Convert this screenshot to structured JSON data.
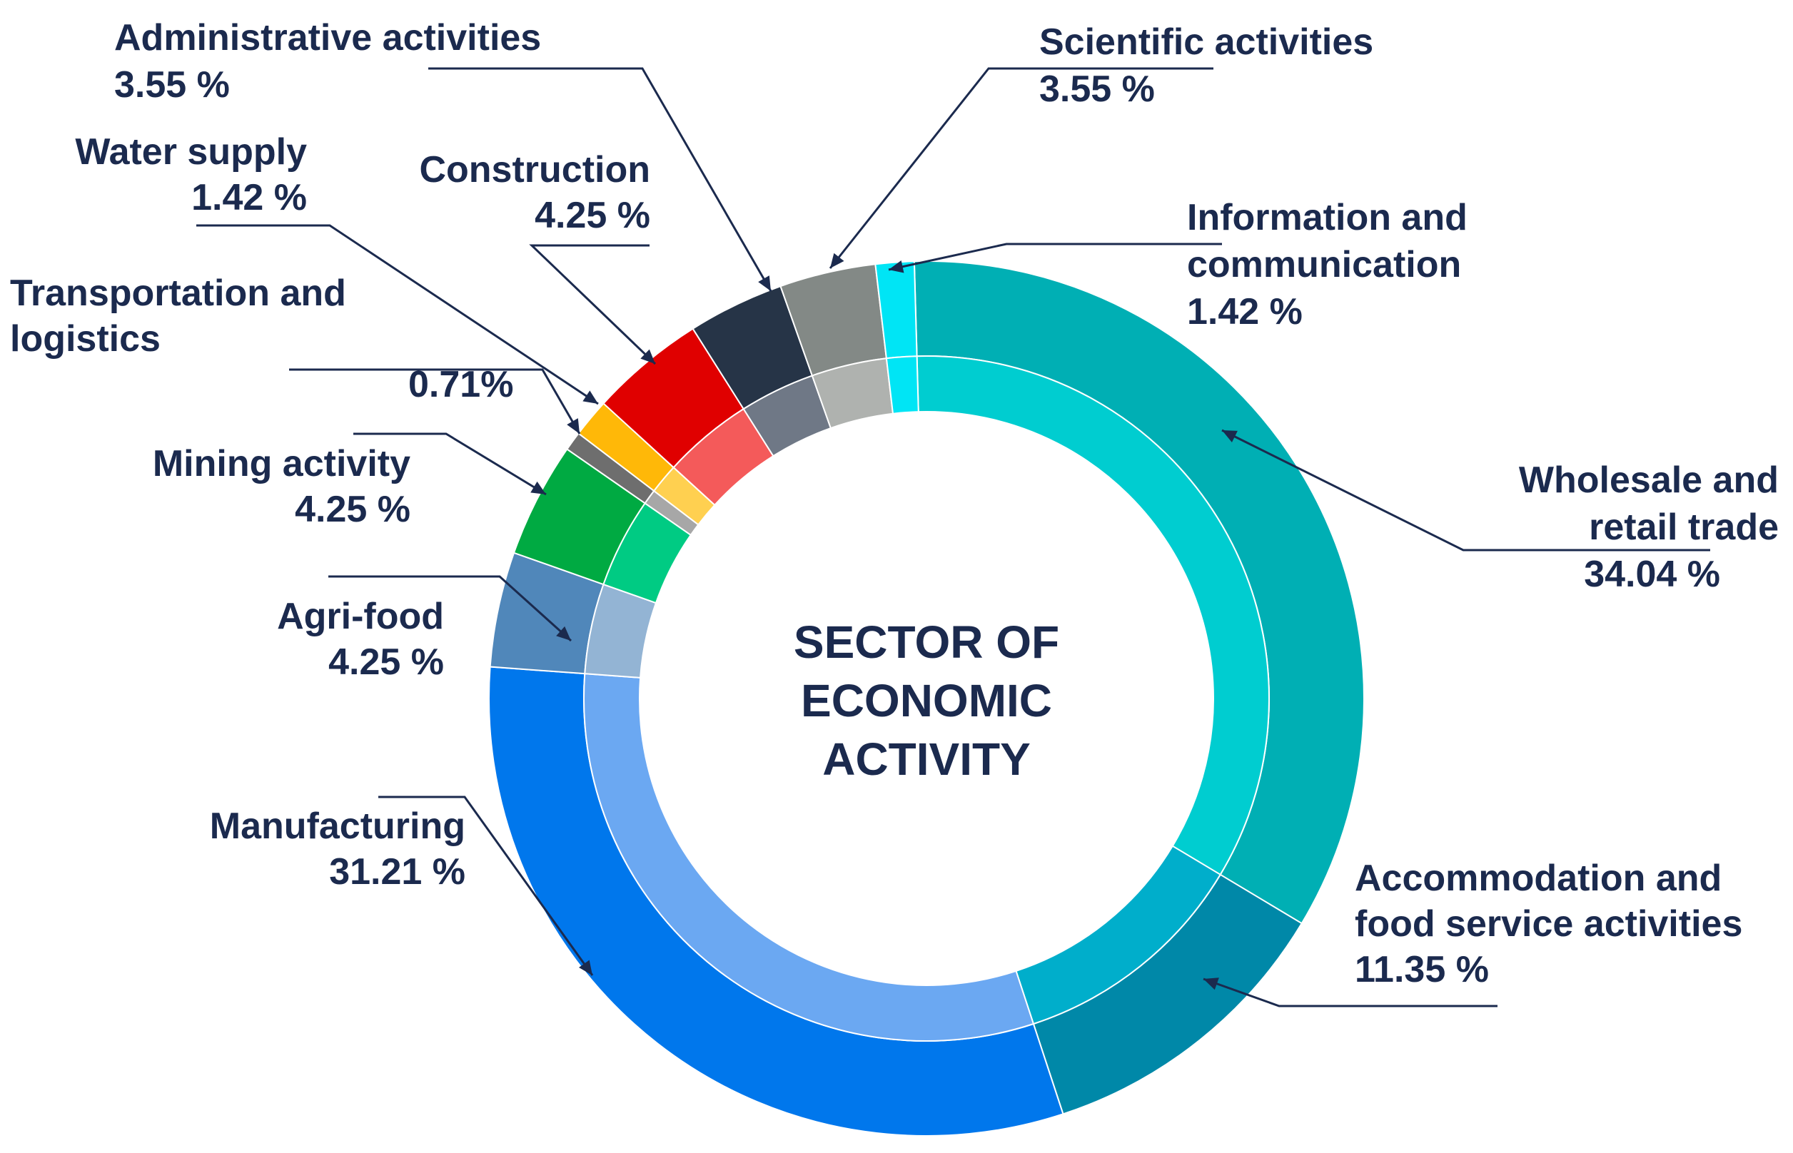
{
  "chart_data": {
    "type": "pie",
    "subtype": "donut",
    "center_title": [
      "SECTOR OF",
      "ECONOMIC",
      "ACTIVITY"
    ],
    "unit": "%",
    "slices": [
      {
        "name": "Wholesale and retail trade",
        "label_lines": [
          "Wholesale and",
          "retail trade"
        ],
        "value_label": "34.04 %",
        "value": 34.04,
        "outer_color": "#00AFB4",
        "inner_color": "#00CDD0",
        "label_pos": "right"
      },
      {
        "name": "Accommodation and food service activities",
        "label_lines": [
          "Accommodation and",
          "food service activities"
        ],
        "value_label": "11.35 %",
        "value": 11.35,
        "outer_color": "#0088A8",
        "inner_color": "#00AECB",
        "label_pos": "bottom-right"
      },
      {
        "name": "Manufacturing",
        "label_lines": [
          "Manufacturing"
        ],
        "value_label": "31.21 %",
        "value": 31.21,
        "outer_color": "#0077EC",
        "inner_color": "#6BA8F2",
        "label_pos": "left"
      },
      {
        "name": "Agri-food",
        "label_lines": [
          "Agri-food"
        ],
        "value_label": "4.25 %",
        "value": 4.25,
        "outer_color": "#5087BA",
        "inner_color": "#93B4D4",
        "label_pos": "left"
      },
      {
        "name": "Mining activity",
        "label_lines": [
          "Mining activity"
        ],
        "value_label": "4.25 %",
        "value": 4.25,
        "outer_color": "#00AA42",
        "inner_color": "#00CB83",
        "label_pos": "left"
      },
      {
        "name": "Transportation and logistics",
        "label_lines": [
          "Transportation and",
          "logistics"
        ],
        "value_label": "0.71%",
        "value": 0.71,
        "outer_color": "#6E6E6E",
        "inner_color": "#A7A7A7",
        "label_pos": "top-left"
      },
      {
        "name": "Water supply",
        "label_lines": [
          "Water supply"
        ],
        "value_label": "1.42 %",
        "value": 1.42,
        "outer_color": "#FFB808",
        "inner_color": "#FFD050",
        "label_pos": "top-left"
      },
      {
        "name": "Construction",
        "label_lines": [
          "Construction"
        ],
        "value_label": "4.25 %",
        "value": 4.25,
        "outer_color": "#E00000",
        "inner_color": "#F45A5A",
        "label_pos": "top"
      },
      {
        "name": "Administrative activities",
        "label_lines": [
          "Administrative activities"
        ],
        "value_label": "3.55 %",
        "value": 3.55,
        "outer_color": "#263447",
        "inner_color": "#6F7886",
        "label_pos": "top-left"
      },
      {
        "name": "Scientific activities",
        "label_lines": [
          "Scientific activities"
        ],
        "value_label": "3.55 %",
        "value": 3.55,
        "outer_color": "#838986",
        "inner_color": "#AFB2AF",
        "label_pos": "top-right"
      },
      {
        "name": "Information and communication",
        "label_lines": [
          "Information and",
          "communication"
        ],
        "value_label": "1.42 %",
        "value": 1.42,
        "outer_color": "#00E5F5",
        "inner_color": "#00E5F5",
        "label_pos": "top-right"
      }
    ]
  }
}
